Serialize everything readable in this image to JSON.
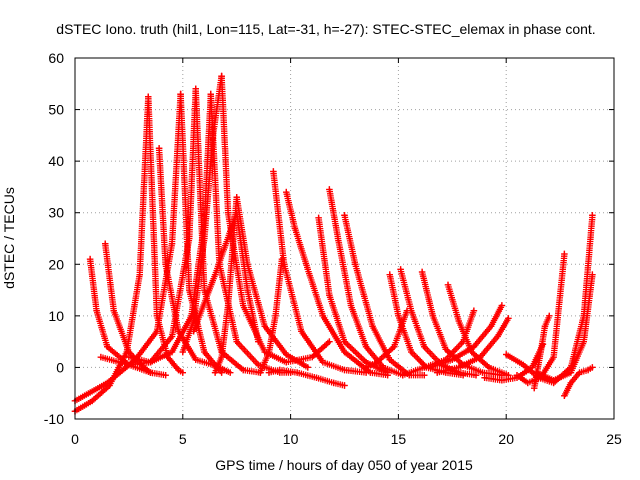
{
  "chart_data": {
    "type": "scatter",
    "title": "dSTEC Iono. truth (hil1, Lon=115, Lat=-31, h=-27): STEC-STEC_elemax in phase cont.",
    "xlabel": "GPS time / hours of day 050 of year 2015",
    "ylabel": "dSTEC  / TECUs",
    "xlim": [
      0,
      25
    ],
    "ylim": [
      -10,
      60
    ],
    "xticks": [
      0,
      5,
      10,
      15,
      20,
      25
    ],
    "yticks": [
      -10,
      0,
      10,
      20,
      30,
      40,
      50,
      60
    ],
    "grid": true,
    "marker": "+",
    "color": "#ff0000",
    "series": [
      {
        "x": [
          0.0,
          0.8,
          1.6,
          2.4,
          3.0,
          3.4
        ],
        "y": [
          -8.5,
          -6.5,
          -3.5,
          3.0,
          18.0,
          52.5
        ]
      },
      {
        "x": [
          3.4,
          3.8,
          4.3,
          4.8,
          5.0
        ],
        "y": [
          52.5,
          10.0,
          2.0,
          -0.5,
          -1.0
        ]
      },
      {
        "x": [
          0.0,
          1.5,
          2.8,
          3.8,
          4.5,
          4.9
        ],
        "y": [
          -6.5,
          -3.0,
          1.5,
          7.0,
          24.0,
          53.0
        ]
      },
      {
        "x": [
          4.9,
          5.3,
          6.0,
          6.8
        ],
        "y": [
          53.0,
          15.0,
          3.0,
          -1.0
        ]
      },
      {
        "x": [
          0.7,
          1.0,
          1.5,
          2.5,
          3.5,
          4.2
        ],
        "y": [
          21.0,
          11.0,
          4.0,
          0.5,
          -1.0,
          -1.5
        ]
      },
      {
        "x": [
          1.4,
          1.8,
          2.5,
          3.2,
          3.5
        ],
        "y": [
          24.0,
          11.0,
          3.0,
          0.0,
          -1.0
        ]
      },
      {
        "x": [
          1.2,
          2.5,
          3.5,
          4.5,
          5.3,
          5.6
        ],
        "y": [
          2.0,
          0.5,
          1.0,
          6.0,
          25.0,
          54.0
        ]
      },
      {
        "x": [
          5.6,
          6.0,
          6.8,
          7.8,
          8.6
        ],
        "y": [
          54.0,
          15.0,
          3.0,
          -0.5,
          -1.0
        ]
      },
      {
        "x": [
          3.9,
          4.2,
          4.8,
          5.6,
          6.4,
          7.2
        ],
        "y": [
          42.5,
          20.0,
          7.0,
          1.5,
          0.5,
          -1.0
        ]
      },
      {
        "x": [
          2.5,
          3.5,
          4.5,
          5.4,
          6.0,
          6.3
        ],
        "y": [
          2.0,
          1.0,
          3.0,
          10.0,
          28.0,
          53.0
        ]
      },
      {
        "x": [
          6.3,
          6.7,
          7.5,
          8.5,
          9.5,
          10.0
        ],
        "y": [
          53.0,
          20.0,
          5.0,
          0.5,
          -1.0,
          -1.0
        ]
      },
      {
        "x": [
          5.0,
          5.5,
          6.0,
          6.4,
          6.8
        ],
        "y": [
          3.0,
          9.0,
          25.0,
          45.0,
          56.5
        ]
      },
      {
        "x": [
          6.8,
          7.1,
          7.8,
          8.8,
          9.8,
          11.0,
          11.8
        ],
        "y": [
          56.5,
          30.0,
          12.0,
          3.0,
          1.0,
          2.0,
          5.0
        ]
      },
      {
        "x": [
          6.5,
          6.8,
          7.1,
          7.5,
          8.0,
          8.8,
          9.8,
          10.8
        ],
        "y": [
          -1.0,
          2.0,
          12.0,
          33.0,
          20.0,
          8.0,
          2.5,
          0.0
        ]
      },
      {
        "x": [
          5.5,
          6.5,
          7.5,
          8.0,
          8.5
        ],
        "y": [
          7.0,
          18.0,
          30.0,
          15.0,
          5.0
        ]
      },
      {
        "x": [
          9.0,
          9.5,
          10.3,
          11.2,
          12.0,
          12.5
        ],
        "y": [
          -1.0,
          -0.5,
          -1.0,
          -2.0,
          -3.0,
          -3.5
        ]
      },
      {
        "x": [
          8.6,
          9.0,
          9.3,
          9.6
        ],
        "y": [
          -1.0,
          3.0,
          10.0,
          21.0
        ]
      },
      {
        "x": [
          9.2,
          9.7,
          10.5,
          11.5,
          12.5,
          13.5
        ],
        "y": [
          38.0,
          20.0,
          7.0,
          1.0,
          -0.5,
          -1.0
        ]
      },
      {
        "x": [
          9.8,
          10.2,
          10.8,
          11.5,
          12.5,
          13.7,
          14.5
        ],
        "y": [
          34.0,
          27.0,
          19.0,
          10.0,
          3.0,
          -1.0,
          -1.5
        ]
      },
      {
        "x": [
          11.3,
          11.8,
          12.5,
          13.5,
          14.5
        ],
        "y": [
          29.0,
          14.0,
          5.0,
          1.0,
          -1.0
        ]
      },
      {
        "x": [
          11.8,
          12.2,
          12.8,
          13.5,
          14.3,
          15.2
        ],
        "y": [
          34.5,
          25.0,
          12.0,
          4.0,
          0.0,
          -1.5
        ]
      },
      {
        "x": [
          12.5,
          13.0,
          13.8,
          14.6,
          15.5,
          16.2
        ],
        "y": [
          29.5,
          20.0,
          8.0,
          1.5,
          -1.5,
          -1.5
        ]
      },
      {
        "x": [
          13.5,
          14.0,
          14.8,
          15.4
        ],
        "y": [
          0.0,
          1.0,
          4.0,
          11.0
        ]
      },
      {
        "x": [
          14.6,
          15.0,
          15.6,
          16.3,
          17.2,
          18.0
        ],
        "y": [
          18.0,
          10.0,
          3.0,
          0.0,
          -1.0,
          -1.5
        ]
      },
      {
        "x": [
          15.1,
          15.6,
          16.2,
          17.0,
          17.8,
          18.6
        ],
        "y": [
          19.0,
          11.0,
          4.0,
          0.5,
          -1.0,
          -1.5
        ]
      },
      {
        "x": [
          16.1,
          16.6,
          17.2,
          18.0,
          18.9,
          19.8
        ],
        "y": [
          18.5,
          10.0,
          3.5,
          0.5,
          -1.0,
          -1.5
        ]
      },
      {
        "x": [
          17.3,
          17.8,
          18.4,
          19.2,
          20.1
        ],
        "y": [
          16.0,
          9.0,
          3.0,
          0.0,
          -1.5
        ]
      },
      {
        "x": [
          15.2,
          16.2,
          17.2,
          18.0,
          18.5
        ],
        "y": [
          -1.5,
          0.0,
          1.5,
          5.0,
          11.0
        ]
      },
      {
        "x": [
          16.8,
          17.8,
          18.8,
          19.6,
          20.1
        ],
        "y": [
          -1.0,
          0.0,
          2.0,
          6.0,
          9.5
        ]
      },
      {
        "x": [
          16.5,
          17.5,
          18.5,
          19.3,
          19.8
        ],
        "y": [
          0.0,
          1.5,
          4.0,
          8.0,
          12.0
        ]
      },
      {
        "x": [
          19.0,
          19.8,
          20.5,
          21.2,
          21.7
        ],
        "y": [
          -2.0,
          -2.5,
          -2.0,
          0.0,
          4.5
        ]
      },
      {
        "x": [
          20.5,
          21.0,
          21.6,
          22.2,
          22.7
        ],
        "y": [
          -1.5,
          -3.0,
          -2.0,
          2.0,
          22.0
        ]
      },
      {
        "x": [
          20.0,
          20.8,
          21.5,
          22.2,
          23.0,
          23.6,
          24.0
        ],
        "y": [
          2.5,
          0.5,
          -2.0,
          -3.0,
          0.0,
          10.0,
          29.5
        ]
      },
      {
        "x": [
          21.4,
          22.2,
          23.0,
          23.6,
          24.0
        ],
        "y": [
          -1.0,
          -2.5,
          -1.0,
          5.0,
          18.0
        ]
      },
      {
        "x": [
          22.7,
          23.0,
          23.4,
          23.8,
          24.0
        ],
        "y": [
          -5.5,
          -3.0,
          -1.0,
          -0.5,
          0.0
        ]
      },
      {
        "x": [
          21.3,
          21.6,
          21.8,
          22.0
        ],
        "y": [
          -4.0,
          3.0,
          8.0,
          10.0
        ]
      }
    ]
  }
}
